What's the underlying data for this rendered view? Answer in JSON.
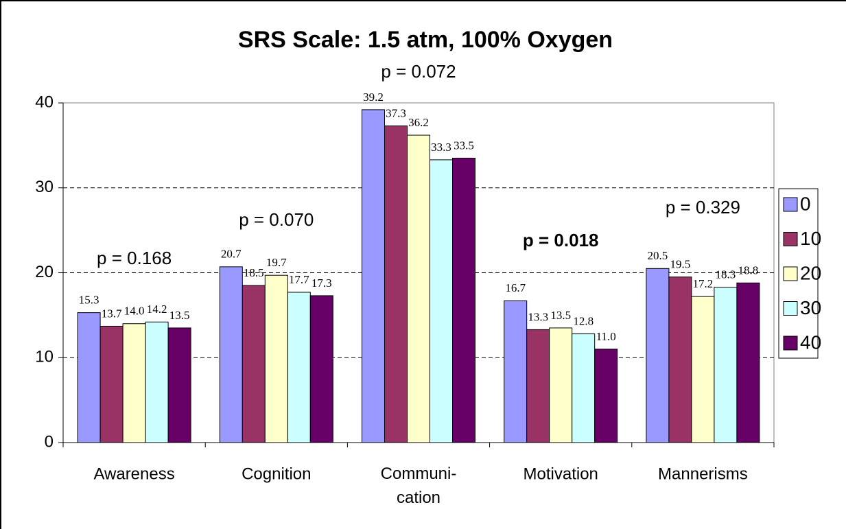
{
  "chart_data": {
    "type": "bar",
    "title": "SRS Scale: 1.5 atm, 100% Oxygen",
    "categories": [
      "Awareness",
      "Cognition",
      "Communi-\ncation",
      "Motivation",
      "Mannerisms"
    ],
    "series": [
      {
        "name": "0",
        "color": "#9999ff",
        "values": [
          15.3,
          20.7,
          39.2,
          16.7,
          20.5
        ],
        "value_labels": [
          "15.3",
          "20.7",
          "39.2",
          "16.7",
          "20.5"
        ]
      },
      {
        "name": "10",
        "color": "#993366",
        "values": [
          13.7,
          18.5,
          37.3,
          13.3,
          19.5
        ],
        "value_labels": [
          "13.7",
          "18.5",
          "37.3",
          "13.3",
          "19.5"
        ]
      },
      {
        "name": "20",
        "color": "#ffffcc",
        "values": [
          14.0,
          19.7,
          36.2,
          13.5,
          17.2
        ],
        "value_labels": [
          "14.0",
          "19.7",
          "36.2",
          "13.5",
          "17.2"
        ]
      },
      {
        "name": "30",
        "color": "#ccffff",
        "values": [
          14.2,
          17.7,
          33.3,
          12.8,
          18.3
        ],
        "value_labels": [
          "14.2",
          "17.7",
          "33.3",
          "12.8",
          "18.3"
        ]
      },
      {
        "name": "40",
        "color": "#660066",
        "values": [
          13.5,
          17.3,
          33.5,
          11.0,
          18.8
        ],
        "value_labels": [
          "13.5",
          "17.3",
          "33.5",
          "11.0",
          "18.8"
        ]
      }
    ],
    "annotations": [
      {
        "text": "p = 0.168"
      },
      {
        "text": "p = 0.070"
      },
      {
        "text": "p = 0.072"
      },
      {
        "text": "p = 0.018",
        "bold": true
      },
      {
        "text": "p = 0.329"
      }
    ],
    "ylim": [
      0,
      40
    ],
    "yticks": [
      0,
      10,
      20,
      30,
      40
    ],
    "grid": true,
    "legend": "right"
  }
}
